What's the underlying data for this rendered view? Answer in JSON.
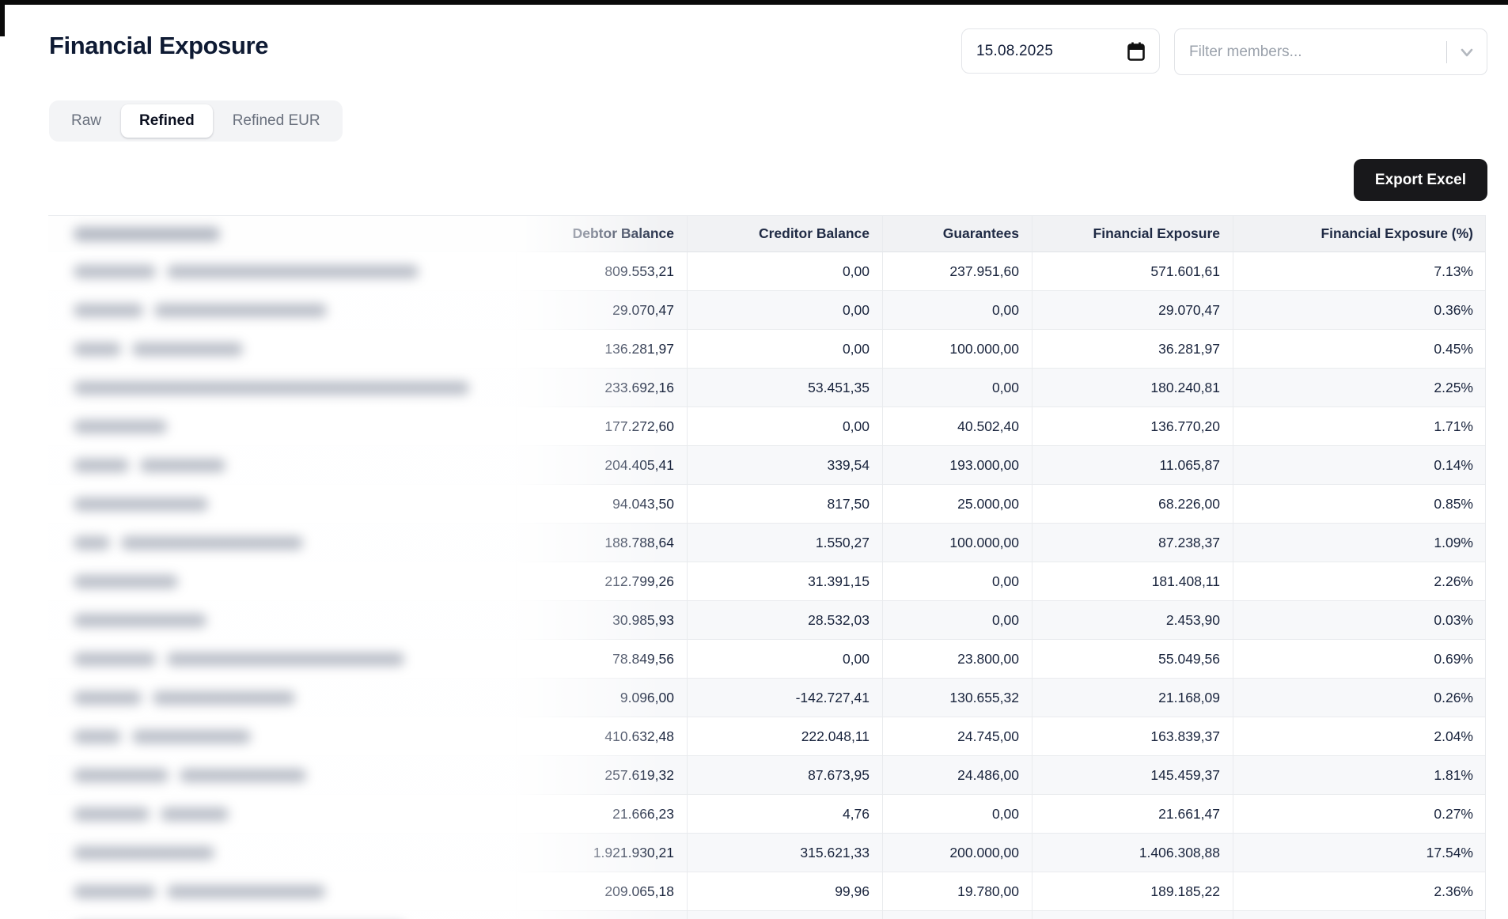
{
  "header": {
    "title": "Financial Exposure"
  },
  "controls": {
    "date": {
      "value": "15.08.2025",
      "icon": "calendar-icon"
    },
    "member_filter": {
      "placeholder": "Filter members...",
      "icon": "chevron-down-icon"
    },
    "export_button": {
      "label": "Export Excel"
    }
  },
  "tabs": {
    "items": [
      {
        "label": "Raw",
        "active": false
      },
      {
        "label": "Refined",
        "active": true
      },
      {
        "label": "Refined EUR",
        "active": false
      }
    ]
  },
  "table": {
    "columns": [
      {
        "key": "member",
        "label": "",
        "redacted": true
      },
      {
        "key": "debtor",
        "label": "Debtor Balance"
      },
      {
        "key": "creditor",
        "label": "Creditor Balance"
      },
      {
        "key": "guarantees",
        "label": "Guarantees"
      },
      {
        "key": "exposure",
        "label": "Financial Exposure"
      },
      {
        "key": "exposure_pct",
        "label": "Financial Exposure (%)"
      }
    ],
    "rows": [
      {
        "debtor": "809.553,21",
        "creditor": "0,00",
        "guarantees": "237.951,60",
        "exposure": "571.601,61",
        "exposure_pct": "7.13%"
      },
      {
        "debtor": "29.070,47",
        "creditor": "0,00",
        "guarantees": "0,00",
        "exposure": "29.070,47",
        "exposure_pct": "0.36%"
      },
      {
        "debtor": "136.281,97",
        "creditor": "0,00",
        "guarantees": "100.000,00",
        "exposure": "36.281,97",
        "exposure_pct": "0.45%"
      },
      {
        "debtor": "233.692,16",
        "creditor": "53.451,35",
        "guarantees": "0,00",
        "exposure": "180.240,81",
        "exposure_pct": "2.25%"
      },
      {
        "debtor": "177.272,60",
        "creditor": "0,00",
        "guarantees": "40.502,40",
        "exposure": "136.770,20",
        "exposure_pct": "1.71%"
      },
      {
        "debtor": "204.405,41",
        "creditor": "339,54",
        "guarantees": "193.000,00",
        "exposure": "11.065,87",
        "exposure_pct": "0.14%"
      },
      {
        "debtor": "94.043,50",
        "creditor": "817,50",
        "guarantees": "25.000,00",
        "exposure": "68.226,00",
        "exposure_pct": "0.85%"
      },
      {
        "debtor": "188.788,64",
        "creditor": "1.550,27",
        "guarantees": "100.000,00",
        "exposure": "87.238,37",
        "exposure_pct": "1.09%"
      },
      {
        "debtor": "212.799,26",
        "creditor": "31.391,15",
        "guarantees": "0,00",
        "exposure": "181.408,11",
        "exposure_pct": "2.26%"
      },
      {
        "debtor": "30.985,93",
        "creditor": "28.532,03",
        "guarantees": "0,00",
        "exposure": "2.453,90",
        "exposure_pct": "0.03%"
      },
      {
        "debtor": "78.849,56",
        "creditor": "0,00",
        "guarantees": "23.800,00",
        "exposure": "55.049,56",
        "exposure_pct": "0.69%"
      },
      {
        "debtor": "9.096,00",
        "creditor": "-142.727,41",
        "guarantees": "130.655,32",
        "exposure": "21.168,09",
        "exposure_pct": "0.26%"
      },
      {
        "debtor": "410.632,48",
        "creditor": "222.048,11",
        "guarantees": "24.745,00",
        "exposure": "163.839,37",
        "exposure_pct": "2.04%"
      },
      {
        "debtor": "257.619,32",
        "creditor": "87.673,95",
        "guarantees": "24.486,00",
        "exposure": "145.459,37",
        "exposure_pct": "1.81%"
      },
      {
        "debtor": "21.666,23",
        "creditor": "4,76",
        "guarantees": "0,00",
        "exposure": "21.661,47",
        "exposure_pct": "0.27%"
      },
      {
        "debtor": "1.921.930,21",
        "creditor": "315.621,33",
        "guarantees": "200.000,00",
        "exposure": "1.406.308,88",
        "exposure_pct": "17.54%"
      },
      {
        "debtor": "209.065,18",
        "creditor": "99,96",
        "guarantees": "19.780,00",
        "exposure": "189.185,22",
        "exposure_pct": "2.36%"
      }
    ]
  },
  "colors": {
    "title_text": "#0e1a33",
    "table_text": "#18233c",
    "header_row_bg": "#f1f2f4",
    "zebra_row_bg": "#f7f8fa",
    "export_button_bg": "#18181b",
    "export_button_text": "#ffffff"
  }
}
